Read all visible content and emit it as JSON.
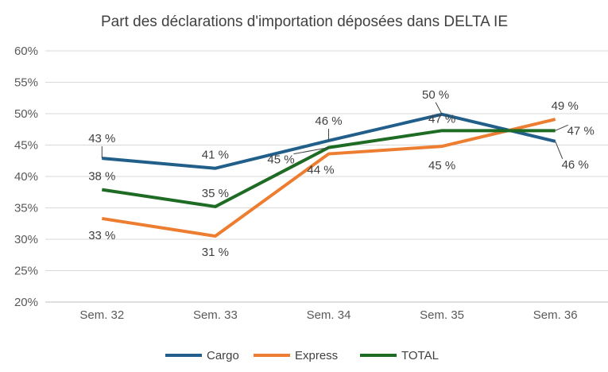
{
  "chart_data": {
    "type": "line",
    "title": "Part des déclarations d'importation déposées dans DELTA IE",
    "xlabel": "",
    "ylabel": "",
    "categories": [
      "Sem. 32",
      "Sem. 33",
      "Sem. 34",
      "Sem. 35",
      "Sem. 36"
    ],
    "ylim": [
      20,
      60
    ],
    "yticks": [
      "20%",
      "25%",
      "30%",
      "35%",
      "40%",
      "45%",
      "50%",
      "55%",
      "60%"
    ],
    "grid": true,
    "legend_position": "bottom",
    "series": [
      {
        "name": "Cargo",
        "color": "#215f8a",
        "values": [
          42.9,
          41.3,
          45.7,
          49.9,
          45.6
        ],
        "labels": [
          "43 %",
          "41 %",
          "46 %",
          "50 %",
          "46 %"
        ]
      },
      {
        "name": "Express",
        "color": "#ed7d31",
        "values": [
          33.3,
          30.5,
          43.6,
          44.8,
          49.1
        ],
        "labels": [
          "33 %",
          "31 %",
          "44 %",
          "45 %",
          "49 %"
        ]
      },
      {
        "name": "TOTAL",
        "color": "#1e6b24",
        "values": [
          37.9,
          35.2,
          44.6,
          47.3,
          47.3
        ],
        "labels": [
          "38 %",
          "35 %",
          "45 %",
          "47 %",
          "47 %"
        ]
      }
    ]
  }
}
